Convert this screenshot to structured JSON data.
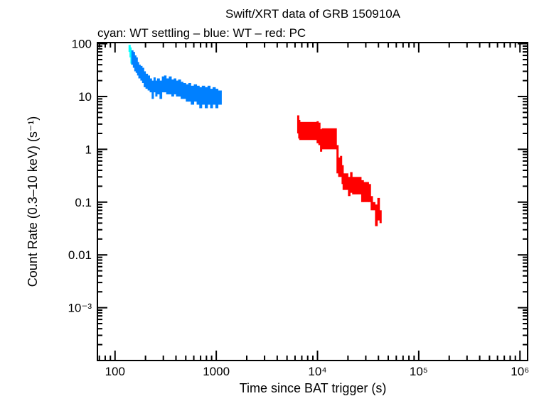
{
  "chart_data": {
    "type": "scatter",
    "title": "Swift/XRT data of GRB 150910A",
    "subtitle": "cyan: WT settling – blue: WT – red: PC",
    "xlabel": "Time since BAT trigger (s)",
    "ylabel": "Count Rate (0.3–10 keV) (s⁻¹)",
    "xscale": "log",
    "yscale": "log",
    "xlim": [
      67,
      1190000
    ],
    "ylim": [
      0.0001,
      105
    ],
    "grid": false,
    "x_ticks": [
      {
        "v": 100,
        "label": "100"
      },
      {
        "v": 1000,
        "label": "1000"
      },
      {
        "v": 10000,
        "label": "10⁴"
      },
      {
        "v": 100000,
        "label": "10⁵"
      },
      {
        "v": 1000000,
        "label": "10⁶"
      }
    ],
    "y_ticks": [
      {
        "v": 100,
        "label": "100"
      },
      {
        "v": 10,
        "label": "10"
      },
      {
        "v": 1,
        "label": "1"
      },
      {
        "v": 0.1,
        "label": "0.1"
      },
      {
        "v": 0.01,
        "label": "0.01"
      },
      {
        "v": 0.001,
        "label": "10⁻³"
      }
    ],
    "series": [
      {
        "name": "WT settling",
        "color": "#00ffff",
        "points": [
          [
            136,
            85,
            70,
            95
          ],
          [
            139,
            70,
            55,
            85
          ],
          [
            142,
            55,
            42,
            68
          ],
          [
            144,
            50,
            40,
            60
          ]
        ]
      },
      {
        "name": "WT",
        "color": "#0080ff",
        "points": [
          [
            145,
            60,
            40,
            75
          ],
          [
            150,
            50,
            35,
            70
          ],
          [
            155,
            45,
            30,
            60
          ],
          [
            160,
            40,
            28,
            55
          ],
          [
            165,
            35,
            25,
            45
          ],
          [
            170,
            30,
            22,
            40
          ],
          [
            178,
            28,
            20,
            38
          ],
          [
            185,
            25,
            18,
            35
          ],
          [
            192,
            22,
            15,
            30
          ],
          [
            200,
            20,
            14,
            27
          ],
          [
            210,
            18,
            13,
            25
          ],
          [
            220,
            16,
            12,
            22
          ],
          [
            230,
            15,
            9,
            20
          ],
          [
            240,
            17,
            12,
            23
          ],
          [
            250,
            14,
            10,
            20
          ],
          [
            260,
            16,
            11,
            22
          ],
          [
            275,
            15,
            9,
            20
          ],
          [
            290,
            17,
            12,
            24
          ],
          [
            305,
            18,
            12,
            25
          ],
          [
            320,
            16,
            11,
            22
          ],
          [
            340,
            17,
            11,
            24
          ],
          [
            360,
            15,
            10,
            21
          ],
          [
            380,
            16,
            11,
            22
          ],
          [
            400,
            14,
            10,
            20
          ],
          [
            420,
            15,
            10,
            21
          ],
          [
            445,
            14,
            9,
            19
          ],
          [
            470,
            13,
            9,
            18
          ],
          [
            500,
            12,
            8,
            17
          ],
          [
            530,
            13,
            8,
            18
          ],
          [
            560,
            11,
            7,
            16
          ],
          [
            600,
            12,
            8,
            17
          ],
          [
            640,
            11,
            7,
            16
          ],
          [
            680,
            10,
            6,
            15
          ],
          [
            720,
            11,
            7,
            16
          ],
          [
            770,
            10,
            6,
            15
          ],
          [
            820,
            11,
            7,
            16
          ],
          [
            870,
            10,
            6,
            14
          ],
          [
            920,
            10,
            7,
            15
          ],
          [
            980,
            10,
            6,
            14
          ],
          [
            1040,
            10,
            7,
            13
          ],
          [
            1080,
            10,
            7,
            13
          ]
        ]
      },
      {
        "name": "PC",
        "color": "#ff0000",
        "points": [
          [
            6300,
            3,
            2,
            4.4
          ],
          [
            6450,
            2.5,
            1.6,
            3.6
          ],
          [
            6600,
            2.4,
            1.5,
            3.3
          ],
          [
            9800,
            2.3,
            1.3,
            3.4
          ],
          [
            10200,
            2.2,
            1.2,
            3.2
          ],
          [
            10600,
            1.6,
            0.9,
            2.4
          ],
          [
            11000,
            1.7,
            1.0,
            2.5
          ],
          [
            15400,
            0.6,
            0.35,
            1.2
          ],
          [
            16000,
            0.45,
            0.3,
            0.7
          ],
          [
            16700,
            0.5,
            0.3,
            0.75
          ],
          [
            17300,
            0.35,
            0.22,
            0.5
          ],
          [
            17700,
            0.25,
            0.17,
            0.35
          ],
          [
            20000,
            0.2,
            0.13,
            0.3
          ],
          [
            21000,
            0.25,
            0.15,
            0.37
          ],
          [
            22000,
            0.2,
            0.14,
            0.3
          ],
          [
            27000,
            0.17,
            0.1,
            0.26
          ],
          [
            28500,
            0.16,
            0.1,
            0.24
          ],
          [
            32000,
            0.15,
            0.1,
            0.22
          ],
          [
            33500,
            0.1,
            0.07,
            0.13
          ],
          [
            35000,
            0.09,
            0.07,
            0.1
          ],
          [
            37000,
            0.06,
            0.035,
            0.09
          ],
          [
            39000,
            0.07,
            0.045,
            0.12
          ],
          [
            41000,
            0.05,
            0.04,
            0.07
          ]
        ]
      }
    ]
  }
}
